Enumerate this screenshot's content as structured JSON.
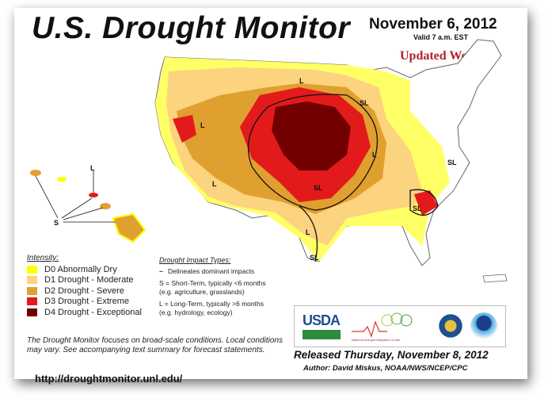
{
  "header": {
    "title": "U.S. Drought Monitor",
    "date": "November 6, 2012",
    "valid": "Valid 7 a.m. EST",
    "updated": "Updated Weekly"
  },
  "colors": {
    "D0": "#ffff00",
    "D1": "#fcd37f",
    "D2": "#e0a030",
    "D3": "#e31a1c",
    "D4": "#730000"
  },
  "map_labels": [
    "L",
    "SL",
    "L",
    "L",
    "SL",
    "SL",
    "L",
    "SL",
    "L",
    "SL",
    "S",
    "L"
  ],
  "legend": {
    "heading": "Intensity:",
    "items": [
      {
        "label": "D0 Abnormally Dry",
        "color": "#ffff00"
      },
      {
        "label": "D1 Drought - Moderate",
        "color": "#fcd37f"
      },
      {
        "label": "D2 Drought - Severe",
        "color": "#e0a030"
      },
      {
        "label": "D3 Drought - Extreme",
        "color": "#e31a1c"
      },
      {
        "label": "D4 Drought - Exceptional",
        "color": "#730000"
      }
    ]
  },
  "impact": {
    "heading": "Drought Impact Types:",
    "delineates": "Delineates dominant impacts",
    "short_term": "S = Short-Term, typically <6 months",
    "short_term_eg": "(e.g. agriculture, grasslands)",
    "long_term": "L = Long-Term, typically >6 months",
    "long_term_eg": "(e.g. hydrology, ecology)"
  },
  "note": "The Drought Monitor focuses on broad-scale conditions. Local conditions may vary. See accompanying text summary for forecast statements.",
  "url": "http://droughtmonitor.unl.edu/",
  "logos": {
    "usda": "USDA",
    "ndmc": "National Drought Mitigation Center"
  },
  "released": "Released Thursday, November 8, 2012",
  "author": "Author: David Miskus, NOAA/NWS/NCEP/CPC"
}
